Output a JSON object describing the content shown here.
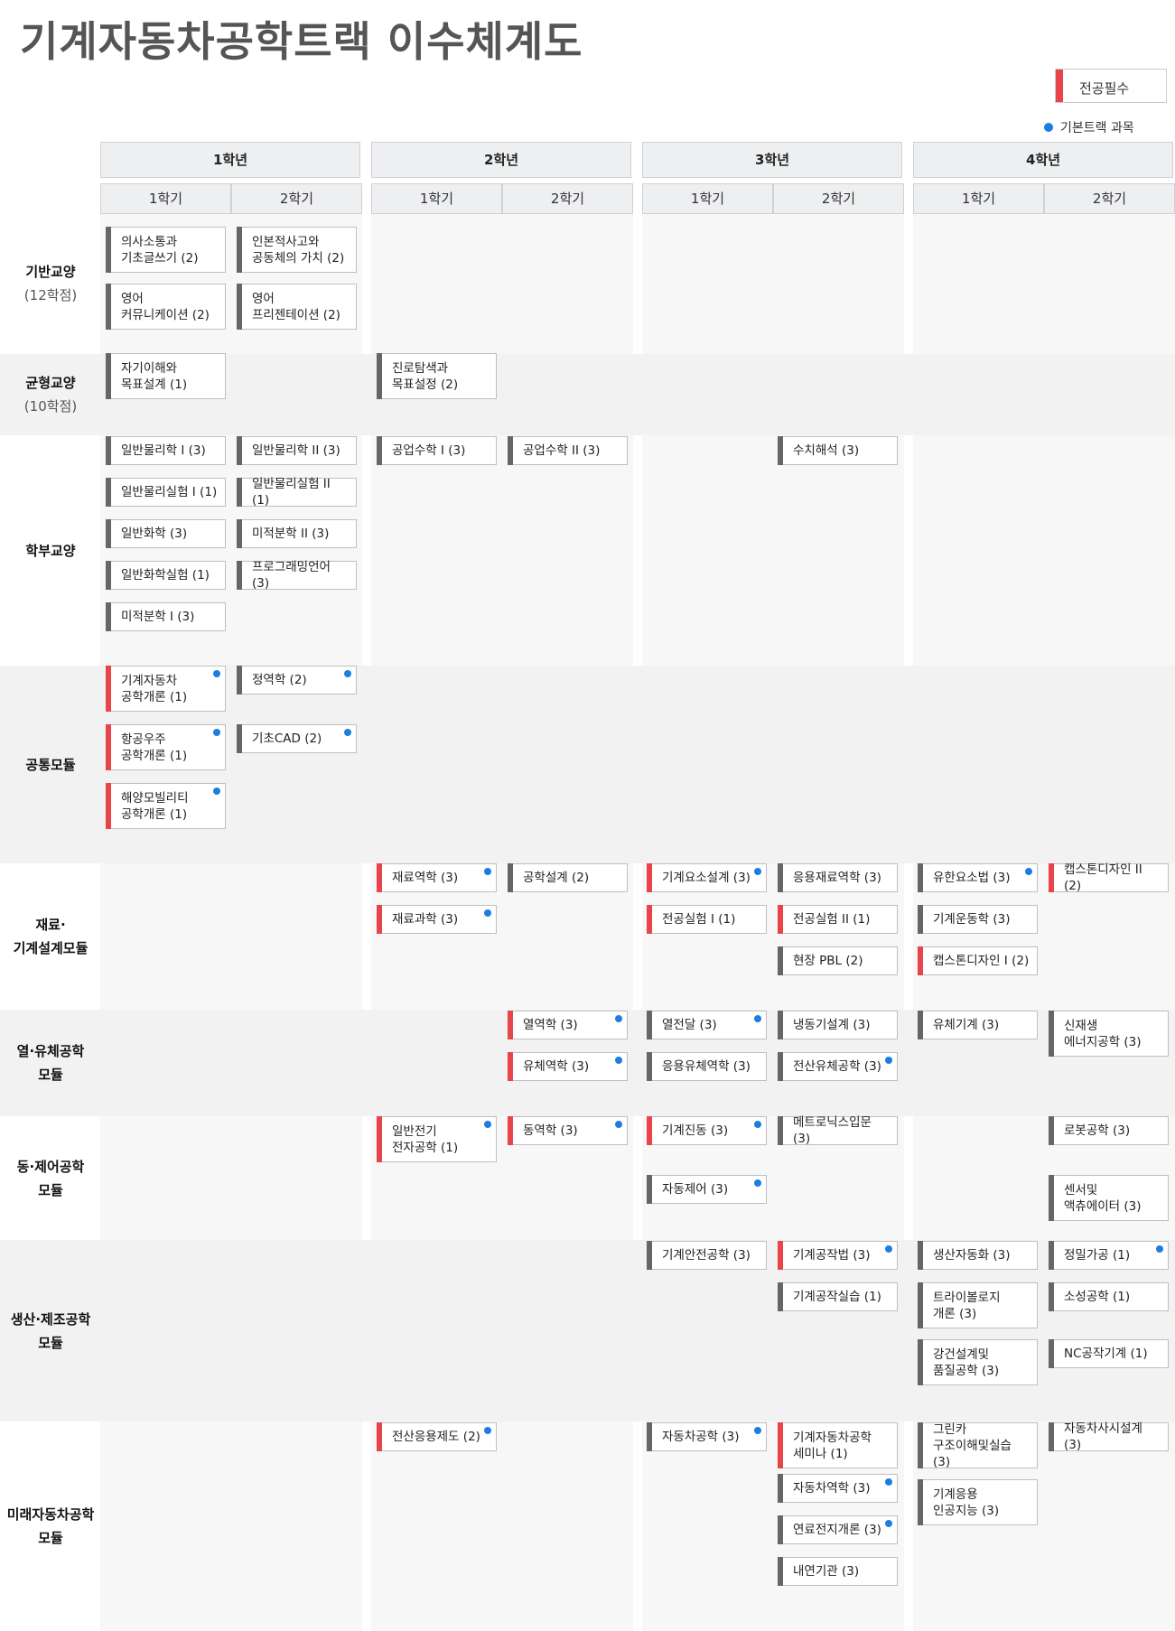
{
  "title": "기계자동차공학트랙 이수체계도",
  "legend": {
    "required_label": "전공필수",
    "basic_track_label": "기본트랙 과목"
  },
  "colors": {
    "required": "#e8444c",
    "elective": "#666666",
    "basic_track_dot": "#1b7ee0"
  },
  "years": [
    "1학년",
    "2학년",
    "3학년",
    "4학년"
  ],
  "semesters": [
    "1학기",
    "2학기",
    "1학기",
    "2학기",
    "1학기",
    "2학기",
    "1학기",
    "2학기"
  ],
  "rows": [
    {
      "label": "기반교양",
      "sub": "(12학점)"
    },
    {
      "label": "균형교양",
      "sub": "(10학점)"
    },
    {
      "label": "학부교양",
      "sub": ""
    },
    {
      "label": "공통모듈",
      "sub": ""
    },
    {
      "label": "재료·\n기계설계모듈",
      "sub": ""
    },
    {
      "label": "열·유체공학\n모듈",
      "sub": ""
    },
    {
      "label": "동·제어공학\n모듈",
      "sub": ""
    },
    {
      "label": "생산·제조공학\n모듈",
      "sub": ""
    },
    {
      "label": "미래자동차공학\n모듈",
      "sub": ""
    }
  ],
  "courses": [
    {
      "name": "의사소통과\n기초글쓰기 (2)",
      "row": 0,
      "col": 0,
      "required": false,
      "basic_track": false
    },
    {
      "name": "영어\n커뮤니케이션 (2)",
      "row": 0,
      "col": 0,
      "required": false,
      "basic_track": false
    },
    {
      "name": "인본적사고와\n공동체의 가치 (2)",
      "row": 0,
      "col": 1,
      "required": false,
      "basic_track": false
    },
    {
      "name": "영어\n프리젠테이션 (2)",
      "row": 0,
      "col": 1,
      "required": false,
      "basic_track": false
    },
    {
      "name": "자기이해와\n목표설계 (1)",
      "row": 1,
      "col": 0,
      "required": false,
      "basic_track": false
    },
    {
      "name": "진로탐색과\n목표설정 (2)",
      "row": 1,
      "col": 2,
      "required": false,
      "basic_track": false
    },
    {
      "name": "일반물리학 I (3)",
      "row": 2,
      "col": 0,
      "required": false,
      "basic_track": false
    },
    {
      "name": "일반물리실험 I (1)",
      "row": 2,
      "col": 0,
      "required": false,
      "basic_track": false
    },
    {
      "name": "일반화학 (3)",
      "row": 2,
      "col": 0,
      "required": false,
      "basic_track": false
    },
    {
      "name": "일반화학실험 (1)",
      "row": 2,
      "col": 0,
      "required": false,
      "basic_track": false
    },
    {
      "name": "미적분학 I (3)",
      "row": 2,
      "col": 0,
      "required": false,
      "basic_track": false
    },
    {
      "name": "일반물리학 II (3)",
      "row": 2,
      "col": 1,
      "required": false,
      "basic_track": false
    },
    {
      "name": "일반물리실험 II (1)",
      "row": 2,
      "col": 1,
      "required": false,
      "basic_track": false
    },
    {
      "name": "미적분학 II (3)",
      "row": 2,
      "col": 1,
      "required": false,
      "basic_track": false
    },
    {
      "name": "프로그래밍언어 (3)",
      "row": 2,
      "col": 1,
      "required": false,
      "basic_track": false
    },
    {
      "name": "공업수학 I (3)",
      "row": 2,
      "col": 2,
      "required": false,
      "basic_track": false
    },
    {
      "name": "공업수학 II (3)",
      "row": 2,
      "col": 3,
      "required": false,
      "basic_track": false
    },
    {
      "name": "수치해석 (3)",
      "row": 2,
      "col": 5,
      "required": false,
      "basic_track": false
    },
    {
      "name": "기계자동차\n공학개론 (1)",
      "row": 3,
      "col": 0,
      "required": true,
      "basic_track": true
    },
    {
      "name": "항공우주\n공학개론 (1)",
      "row": 3,
      "col": 0,
      "required": true,
      "basic_track": true
    },
    {
      "name": "해양모빌리티\n공학개론 (1)",
      "row": 3,
      "col": 0,
      "required": true,
      "basic_track": true
    },
    {
      "name": "정역학 (2)",
      "row": 3,
      "col": 1,
      "required": false,
      "basic_track": true
    },
    {
      "name": "기초CAD (2)",
      "row": 3,
      "col": 1,
      "required": false,
      "basic_track": true
    },
    {
      "name": "재료역학 (3)",
      "row": 4,
      "col": 2,
      "required": true,
      "basic_track": true
    },
    {
      "name": "재료과학 (3)",
      "row": 4,
      "col": 2,
      "required": true,
      "basic_track": true
    },
    {
      "name": "공학설계 (2)",
      "row": 4,
      "col": 3,
      "required": false,
      "basic_track": false
    },
    {
      "name": "기계요소설계 (3)",
      "row": 4,
      "col": 4,
      "required": true,
      "basic_track": true
    },
    {
      "name": "전공실험 I (1)",
      "row": 4,
      "col": 4,
      "required": true,
      "basic_track": false
    },
    {
      "name": "응용재료역학 (3)",
      "row": 4,
      "col": 5,
      "required": false,
      "basic_track": false
    },
    {
      "name": "전공실험 II (1)",
      "row": 4,
      "col": 5,
      "required": true,
      "basic_track": false
    },
    {
      "name": "현장 PBL (2)",
      "row": 4,
      "col": 5,
      "required": false,
      "basic_track": false
    },
    {
      "name": "유한요소법 (3)",
      "row": 4,
      "col": 6,
      "required": false,
      "basic_track": true
    },
    {
      "name": "기계운동학 (3)",
      "row": 4,
      "col": 6,
      "required": false,
      "basic_track": false
    },
    {
      "name": "캡스톤디자인 I (2)",
      "row": 4,
      "col": 6,
      "required": true,
      "basic_track": false
    },
    {
      "name": "캡스톤디자인 II (2)",
      "row": 4,
      "col": 7,
      "required": true,
      "basic_track": false
    },
    {
      "name": "열역학 (3)",
      "row": 5,
      "col": 3,
      "required": true,
      "basic_track": true
    },
    {
      "name": "유체역학 (3)",
      "row": 5,
      "col": 3,
      "required": true,
      "basic_track": true
    },
    {
      "name": "열전달 (3)",
      "row": 5,
      "col": 4,
      "required": false,
      "basic_track": true
    },
    {
      "name": "응용유체역학 (3)",
      "row": 5,
      "col": 4,
      "required": false,
      "basic_track": false
    },
    {
      "name": "냉동기설계 (3)",
      "row": 5,
      "col": 5,
      "required": false,
      "basic_track": false
    },
    {
      "name": "전산유체공학 (3)",
      "row": 5,
      "col": 5,
      "required": false,
      "basic_track": true
    },
    {
      "name": "유체기계 (3)",
      "row": 5,
      "col": 6,
      "required": false,
      "basic_track": false
    },
    {
      "name": "신재생\n에너지공학 (3)",
      "row": 5,
      "col": 7,
      "required": false,
      "basic_track": false
    },
    {
      "name": "일반전기\n전자공학 (1)",
      "row": 6,
      "col": 2,
      "required": true,
      "basic_track": true
    },
    {
      "name": "동역학 (3)",
      "row": 6,
      "col": 3,
      "required": true,
      "basic_track": true
    },
    {
      "name": "기계진동 (3)",
      "row": 6,
      "col": 4,
      "required": true,
      "basic_track": true
    },
    {
      "name": "자동제어 (3)",
      "row": 6,
      "col": 4,
      "required": false,
      "basic_track": true
    },
    {
      "name": "메트로닉스입문 (3)",
      "row": 6,
      "col": 5,
      "required": false,
      "basic_track": false
    },
    {
      "name": "로봇공학 (3)",
      "row": 6,
      "col": 7,
      "required": false,
      "basic_track": false
    },
    {
      "name": "센서및\n액츄에이터 (3)",
      "row": 6,
      "col": 7,
      "required": false,
      "basic_track": false
    },
    {
      "name": "기계안전공학 (3)",
      "row": 7,
      "col": 4,
      "required": false,
      "basic_track": false
    },
    {
      "name": "기계공작법 (3)",
      "row": 7,
      "col": 5,
      "required": true,
      "basic_track": true
    },
    {
      "name": "기계공작실습 (1)",
      "row": 7,
      "col": 5,
      "required": false,
      "basic_track": false
    },
    {
      "name": "생산자동화 (3)",
      "row": 7,
      "col": 6,
      "required": false,
      "basic_track": false
    },
    {
      "name": "트라이볼로지\n개론 (3)",
      "row": 7,
      "col": 6,
      "required": false,
      "basic_track": false
    },
    {
      "name": "강건설계및\n품질공학 (3)",
      "row": 7,
      "col": 6,
      "required": false,
      "basic_track": false
    },
    {
      "name": "정밀가공 (1)",
      "row": 7,
      "col": 7,
      "required": false,
      "basic_track": true
    },
    {
      "name": "소성공학 (1)",
      "row": 7,
      "col": 7,
      "required": false,
      "basic_track": false
    },
    {
      "name": "NC공작기계 (1)",
      "row": 7,
      "col": 7,
      "required": false,
      "basic_track": false
    },
    {
      "name": "전산응용제도 (2)",
      "row": 8,
      "col": 2,
      "required": true,
      "basic_track": true
    },
    {
      "name": "자동차공학 (3)",
      "row": 8,
      "col": 4,
      "required": false,
      "basic_track": true
    },
    {
      "name": "기계자동차공학\n세미나 (1)",
      "row": 8,
      "col": 5,
      "required": true,
      "basic_track": false
    },
    {
      "name": "자동차역학 (3)",
      "row": 8,
      "col": 5,
      "required": false,
      "basic_track": true
    },
    {
      "name": "연료전지개론 (3)",
      "row": 8,
      "col": 5,
      "required": false,
      "basic_track": true
    },
    {
      "name": "내연기관 (3)",
      "row": 8,
      "col": 5,
      "required": false,
      "basic_track": false
    },
    {
      "name": "그린카\n구조이해및실습 (3)",
      "row": 8,
      "col": 6,
      "required": false,
      "basic_track": false
    },
    {
      "name": "기계응용\n인공지능 (3)",
      "row": 8,
      "col": 6,
      "required": false,
      "basic_track": false
    },
    {
      "name": "자동차사시설계 (3)",
      "row": 8,
      "col": 7,
      "required": false,
      "basic_track": false
    }
  ]
}
